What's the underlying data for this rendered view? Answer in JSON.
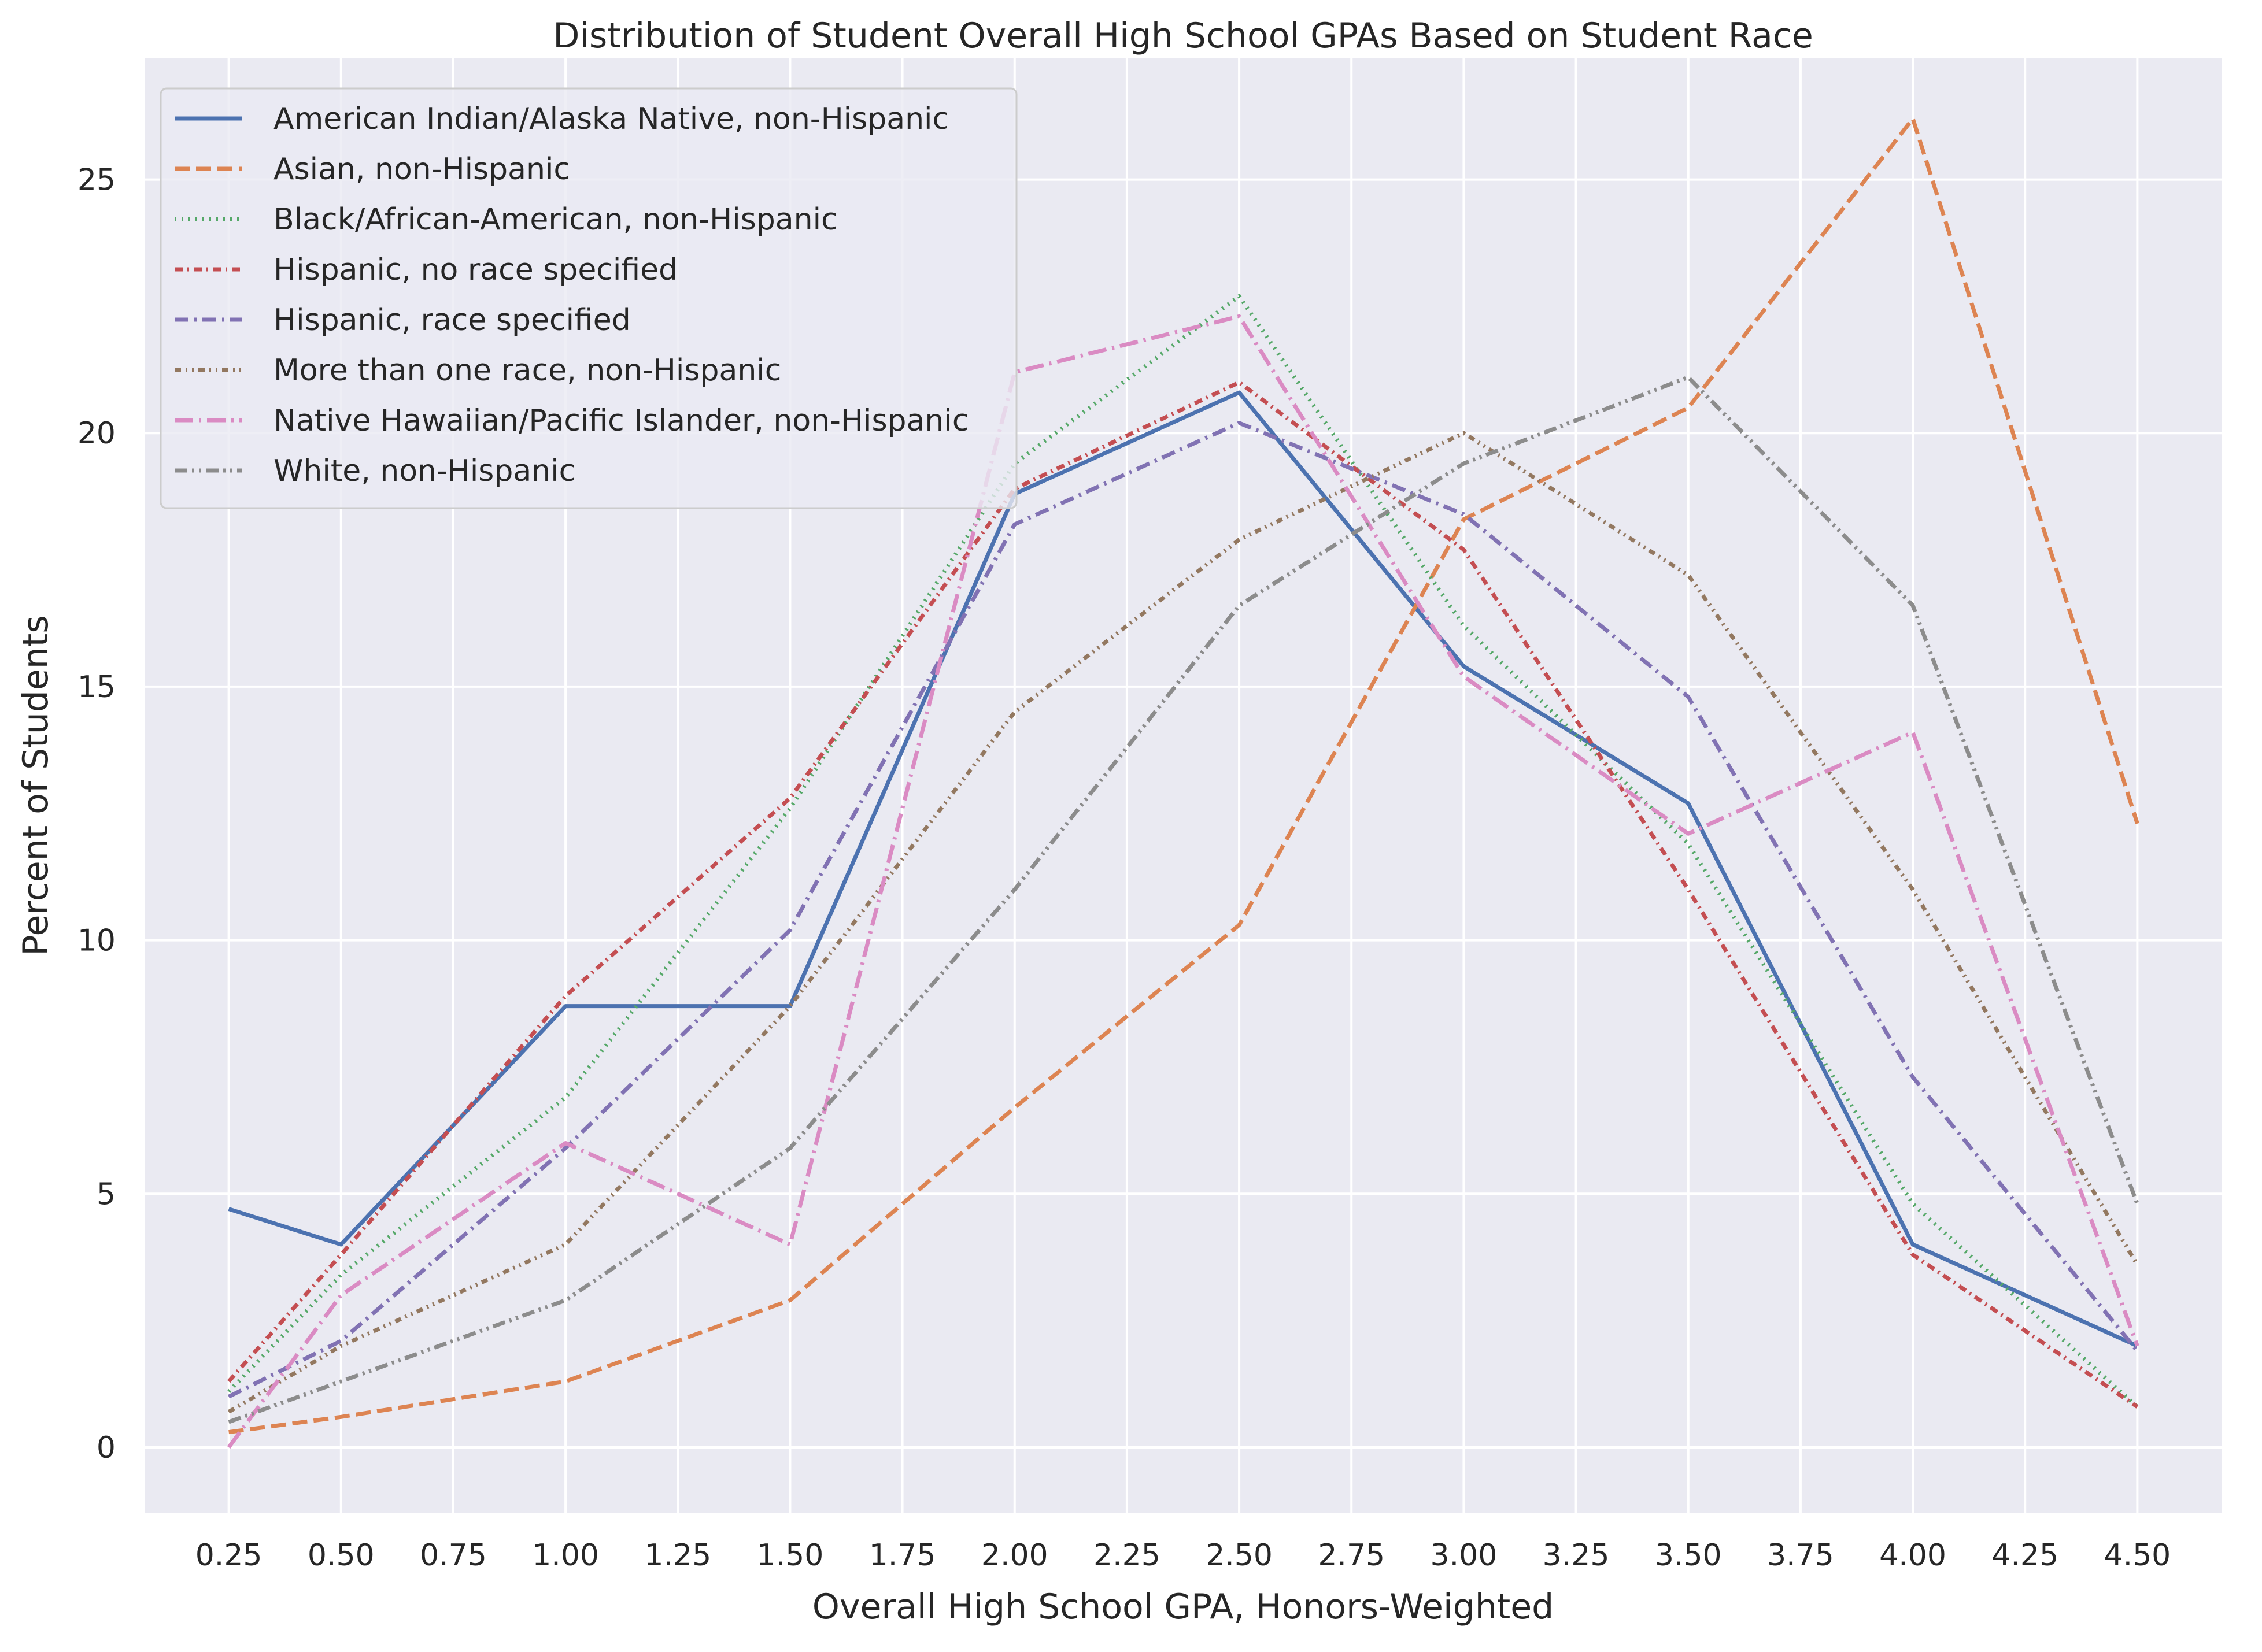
{
  "chart_data": {
    "type": "line",
    "title": "Distribution of Student Overall High School GPAs Based on Student Race",
    "xlabel": "Overall High School GPA, Honors-Weighted",
    "ylabel": "Percent of Students",
    "xlim": [
      0.0625,
      4.6875
    ],
    "ylim": [
      -1.3,
      27.4
    ],
    "x_ticks": [
      "0.25",
      "0.50",
      "0.75",
      "1.00",
      "1.25",
      "1.50",
      "1.75",
      "2.00",
      "2.25",
      "2.50",
      "2.75",
      "3.00",
      "3.25",
      "3.50",
      "3.75",
      "4.00",
      "4.25",
      "4.50"
    ],
    "x_tick_values": [
      0.25,
      0.5,
      0.75,
      1.0,
      1.25,
      1.5,
      1.75,
      2.0,
      2.25,
      2.5,
      2.75,
      3.0,
      3.25,
      3.5,
      3.75,
      4.0,
      4.25,
      4.5
    ],
    "y_ticks": [
      "0",
      "5",
      "10",
      "15",
      "20",
      "25"
    ],
    "y_tick_values": [
      0,
      5,
      10,
      15,
      20,
      25
    ],
    "grid": true,
    "legend_position": "upper-left",
    "x": [
      0.25,
      0.5,
      1.0,
      1.5,
      2.0,
      2.5,
      3.0,
      3.5,
      4.0,
      4.5
    ],
    "series": [
      {
        "name": "American Indian/Alaska Native, non-Hispanic",
        "color": "#4c72b0",
        "dash": "solid",
        "values": [
          4.7,
          4.0,
          8.7,
          8.7,
          18.8,
          20.8,
          15.4,
          12.7,
          4.0,
          2.0
        ]
      },
      {
        "name": "Asian, non-Hispanic",
        "color": "#dd8452",
        "dash": "dashed",
        "values": [
          0.3,
          0.6,
          1.3,
          2.9,
          6.7,
          10.3,
          18.3,
          20.5,
          26.2,
          12.3
        ]
      },
      {
        "name": "Black/African-American, non-Hispanic",
        "color": "#55a868",
        "dash": "dotted",
        "values": [
          1.1,
          3.4,
          6.9,
          12.6,
          19.4,
          22.7,
          16.2,
          11.9,
          4.8,
          0.8
        ]
      },
      {
        "name": "Hispanic, no race specified",
        "color": "#c44e52",
        "dash": "dashdot-short",
        "values": [
          1.3,
          3.8,
          8.9,
          12.8,
          18.9,
          21.0,
          17.7,
          11.0,
          3.8,
          0.8
        ]
      },
      {
        "name": "Hispanic, race specified",
        "color": "#8172b3",
        "dash": "dashdot",
        "values": [
          1.0,
          2.1,
          5.9,
          10.2,
          18.2,
          20.2,
          18.4,
          14.8,
          7.3,
          1.9
        ]
      },
      {
        "name": "More than one race, non-Hispanic",
        "color": "#937860",
        "dash": "dashdotdot",
        "values": [
          0.7,
          2.0,
          4.0,
          8.7,
          14.5,
          17.9,
          20.0,
          17.2,
          11.0,
          3.6
        ]
      },
      {
        "name": "Native Hawaiian/Pacific Islander, non-Hispanic",
        "color": "#da8bc3",
        "dash": "longdash-dot",
        "values": [
          0.0,
          3.0,
          6.0,
          4.0,
          21.2,
          22.3,
          15.2,
          12.1,
          14.1,
          2.0
        ]
      },
      {
        "name": "White, non-Hispanic",
        "color": "#8c8c8c",
        "dash": "longdash-dotdot",
        "values": [
          0.5,
          1.3,
          2.9,
          5.9,
          11.0,
          16.6,
          19.4,
          21.1,
          16.6,
          4.8
        ]
      }
    ]
  }
}
